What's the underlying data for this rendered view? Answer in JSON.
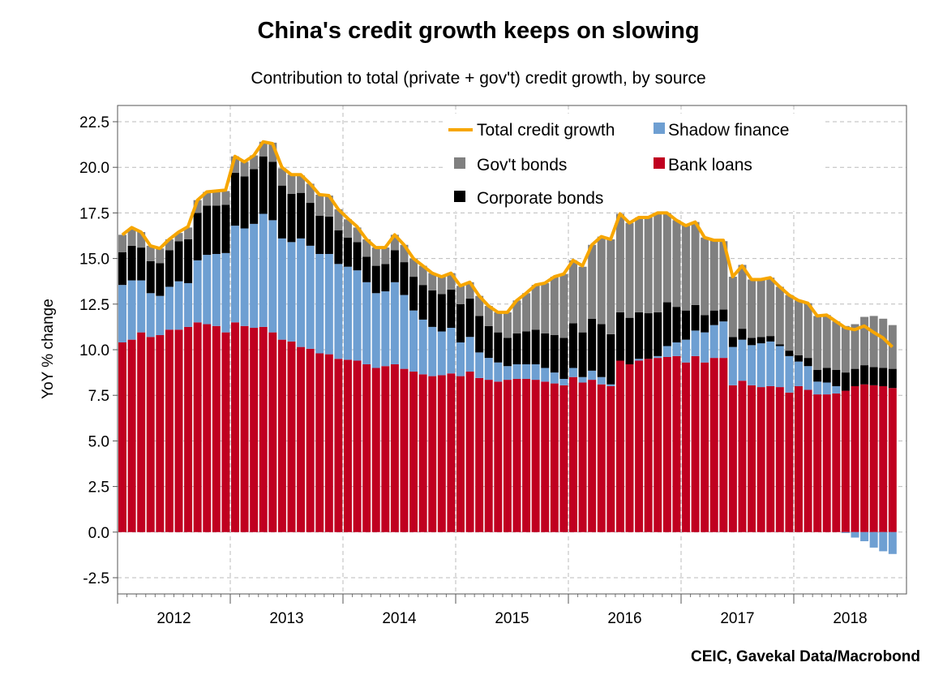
{
  "chart_data": {
    "type": "bar",
    "stacked": true,
    "title": "China's credit growth keeps on slowing",
    "subtitle": "Contribution to total (private + gov't) credit growth, by source",
    "xlabel": "",
    "ylabel": "YoY % change",
    "ylim": [
      -2.5,
      22.5
    ],
    "yticks": [
      "22.5",
      "20.0",
      "17.5",
      "15.0",
      "12.5",
      "10.0",
      "7.5",
      "5.0",
      "2.5",
      "0.0",
      "-2.5"
    ],
    "xticks": [
      "2012",
      "2013",
      "2014",
      "2015",
      "2016",
      "2017",
      "2018"
    ],
    "grid": true,
    "legend_position": "top-right",
    "source": "CEIC, Gavekal Data/Macrobond",
    "x": [
      "2012-01",
      "2012-02",
      "2012-03",
      "2012-04",
      "2012-05",
      "2012-06",
      "2012-07",
      "2012-08",
      "2012-09",
      "2012-10",
      "2012-11",
      "2012-12",
      "2013-01",
      "2013-02",
      "2013-03",
      "2013-04",
      "2013-05",
      "2013-06",
      "2013-07",
      "2013-08",
      "2013-09",
      "2013-10",
      "2013-11",
      "2013-12",
      "2014-01",
      "2014-02",
      "2014-03",
      "2014-04",
      "2014-05",
      "2014-06",
      "2014-07",
      "2014-08",
      "2014-09",
      "2014-10",
      "2014-11",
      "2014-12",
      "2015-01",
      "2015-02",
      "2015-03",
      "2015-04",
      "2015-05",
      "2015-06",
      "2015-07",
      "2015-08",
      "2015-09",
      "2015-10",
      "2015-11",
      "2015-12",
      "2016-01",
      "2016-02",
      "2016-03",
      "2016-04",
      "2016-05",
      "2016-06",
      "2016-07",
      "2016-08",
      "2016-09",
      "2016-10",
      "2016-11",
      "2016-12",
      "2017-01",
      "2017-02",
      "2017-03",
      "2017-04",
      "2017-05",
      "2017-06",
      "2017-07",
      "2017-08",
      "2017-09",
      "2017-10",
      "2017-11",
      "2017-12",
      "2018-01",
      "2018-02",
      "2018-03",
      "2018-04",
      "2018-05",
      "2018-06",
      "2018-07",
      "2018-08",
      "2018-09",
      "2018-10",
      "2018-11"
    ],
    "series": [
      {
        "name": "Bank loans",
        "kind": "bar",
        "color": "#c00020",
        "values": [
          10.4,
          10.55,
          10.95,
          10.7,
          10.8,
          11.1,
          11.1,
          11.25,
          11.5,
          11.4,
          11.3,
          10.95,
          11.5,
          11.3,
          11.2,
          11.25,
          10.95,
          10.55,
          10.45,
          10.15,
          10.05,
          9.8,
          9.75,
          9.5,
          9.45,
          9.4,
          9.2,
          9.0,
          9.1,
          9.2,
          8.95,
          8.8,
          8.65,
          8.55,
          8.6,
          8.7,
          8.55,
          8.8,
          8.45,
          8.35,
          8.25,
          8.35,
          8.4,
          8.4,
          8.35,
          8.25,
          8.15,
          8.05,
          8.5,
          8.2,
          8.35,
          8.1,
          8.0,
          9.4,
          9.2,
          9.4,
          9.5,
          9.55,
          9.6,
          9.65,
          9.3,
          9.65,
          9.3,
          9.55,
          9.55,
          8.05,
          8.3,
          8.05,
          7.95,
          8.0,
          7.95,
          7.65,
          8.0,
          7.8,
          7.55,
          7.55,
          7.6,
          7.75,
          8.0,
          8.1,
          8.05,
          8.0,
          7.9
        ]
      },
      {
        "name": "Shadow finance",
        "kind": "bar",
        "color": "#6e9fd2",
        "values": [
          3.15,
          3.25,
          2.85,
          2.4,
          2.15,
          2.35,
          2.65,
          2.4,
          3.4,
          3.8,
          3.95,
          4.35,
          5.3,
          5.35,
          5.7,
          6.2,
          6.15,
          5.55,
          5.45,
          5.95,
          5.65,
          5.45,
          5.5,
          5.2,
          5.1,
          4.95,
          4.5,
          4.1,
          4.1,
          4.5,
          4.05,
          3.35,
          3.0,
          2.7,
          2.4,
          2.5,
          1.85,
          1.9,
          1.4,
          1.2,
          1.05,
          0.75,
          0.8,
          0.8,
          0.85,
          0.75,
          0.6,
          0.35,
          0.5,
          0.3,
          0.5,
          0.4,
          0.1,
          0.0,
          0.0,
          0.1,
          0.0,
          0.1,
          0.6,
          0.75,
          1.25,
          1.4,
          1.65,
          1.8,
          2.0,
          2.1,
          2.25,
          2.2,
          2.4,
          2.45,
          2.25,
          2.0,
          1.35,
          1.3,
          0.7,
          0.65,
          0.4,
          -0.05,
          -0.3,
          -0.5,
          -0.85,
          -1.05,
          -1.2
        ]
      },
      {
        "name": "Corporate bonds",
        "kind": "bar",
        "color": "#000000",
        "values": [
          1.8,
          1.9,
          1.8,
          1.75,
          1.8,
          2.0,
          2.2,
          2.4,
          2.6,
          2.7,
          2.65,
          2.65,
          2.9,
          2.85,
          3.0,
          3.15,
          3.2,
          2.9,
          2.65,
          2.5,
          2.35,
          2.1,
          2.05,
          1.85,
          1.6,
          1.55,
          1.4,
          1.5,
          1.5,
          1.75,
          1.8,
          1.85,
          1.9,
          2.0,
          2.05,
          2.1,
          2.1,
          2.1,
          2.0,
          1.75,
          1.65,
          1.55,
          1.7,
          1.8,
          1.9,
          1.9,
          2.05,
          2.25,
          2.45,
          2.45,
          2.85,
          2.9,
          2.75,
          2.65,
          2.55,
          2.55,
          2.5,
          2.4,
          2.4,
          1.95,
          1.6,
          1.4,
          0.95,
          0.8,
          0.65,
          0.55,
          0.6,
          0.4,
          0.35,
          0.3,
          0.1,
          0.3,
          0.35,
          0.45,
          0.65,
          0.8,
          0.9,
          1.0,
          0.95,
          1.05,
          1.0,
          1.0,
          1.05
        ]
      },
      {
        "name": "Gov't bonds",
        "kind": "bar",
        "color": "#808080",
        "values": [
          0.95,
          0.9,
          0.85,
          0.85,
          0.8,
          0.6,
          0.45,
          0.65,
          0.7,
          0.75,
          0.75,
          0.75,
          0.9,
          0.8,
          0.75,
          0.8,
          1.05,
          0.95,
          1.05,
          0.95,
          1.05,
          1.15,
          1.15,
          1.15,
          1.0,
          0.8,
          0.95,
          1.0,
          0.9,
          0.85,
          0.95,
          1.0,
          1.05,
          0.95,
          0.95,
          0.9,
          1.0,
          0.9,
          1.1,
          1.1,
          1.1,
          1.4,
          1.8,
          2.1,
          2.45,
          2.75,
          3.2,
          3.5,
          3.45,
          3.6,
          4.05,
          4.8,
          5.2,
          5.4,
          5.2,
          5.2,
          5.25,
          5.4,
          4.9,
          4.75,
          4.65,
          4.55,
          4.25,
          3.85,
          3.75,
          3.3,
          3.5,
          3.2,
          3.15,
          3.2,
          3.15,
          3.05,
          3.0,
          3.0,
          2.95,
          2.9,
          2.65,
          2.55,
          2.45,
          2.65,
          2.8,
          2.7,
          2.4
        ]
      },
      {
        "name": "Total credit growth",
        "kind": "line",
        "color": "#f7a600",
        "values": [
          16.3,
          16.7,
          16.45,
          15.7,
          15.55,
          16.05,
          16.45,
          16.75,
          18.2,
          18.65,
          18.7,
          18.75,
          20.6,
          20.3,
          20.65,
          21.4,
          21.3,
          20.0,
          19.6,
          19.6,
          19.1,
          18.5,
          18.45,
          17.7,
          17.2,
          16.75,
          16.05,
          15.6,
          15.6,
          16.3,
          15.75,
          15.0,
          14.6,
          14.2,
          14.0,
          14.2,
          13.5,
          13.7,
          12.95,
          12.4,
          12.05,
          12.05,
          12.7,
          13.1,
          13.55,
          13.65,
          14.0,
          14.15,
          14.9,
          14.6,
          15.75,
          16.2,
          16.05,
          17.45,
          16.95,
          17.25,
          17.25,
          17.5,
          17.5,
          17.1,
          16.8,
          17.0,
          16.15,
          16.0,
          16.0,
          14.0,
          14.6,
          13.85,
          13.85,
          13.95,
          13.45,
          13.0,
          12.7,
          12.55,
          11.85,
          11.9,
          11.55,
          11.2,
          11.1,
          11.3,
          10.95,
          10.65,
          10.15
        ]
      }
    ],
    "legend": [
      "Total credit growth",
      "Shadow finance",
      "Gov't bonds",
      "Bank loans",
      "Corporate bonds"
    ]
  }
}
